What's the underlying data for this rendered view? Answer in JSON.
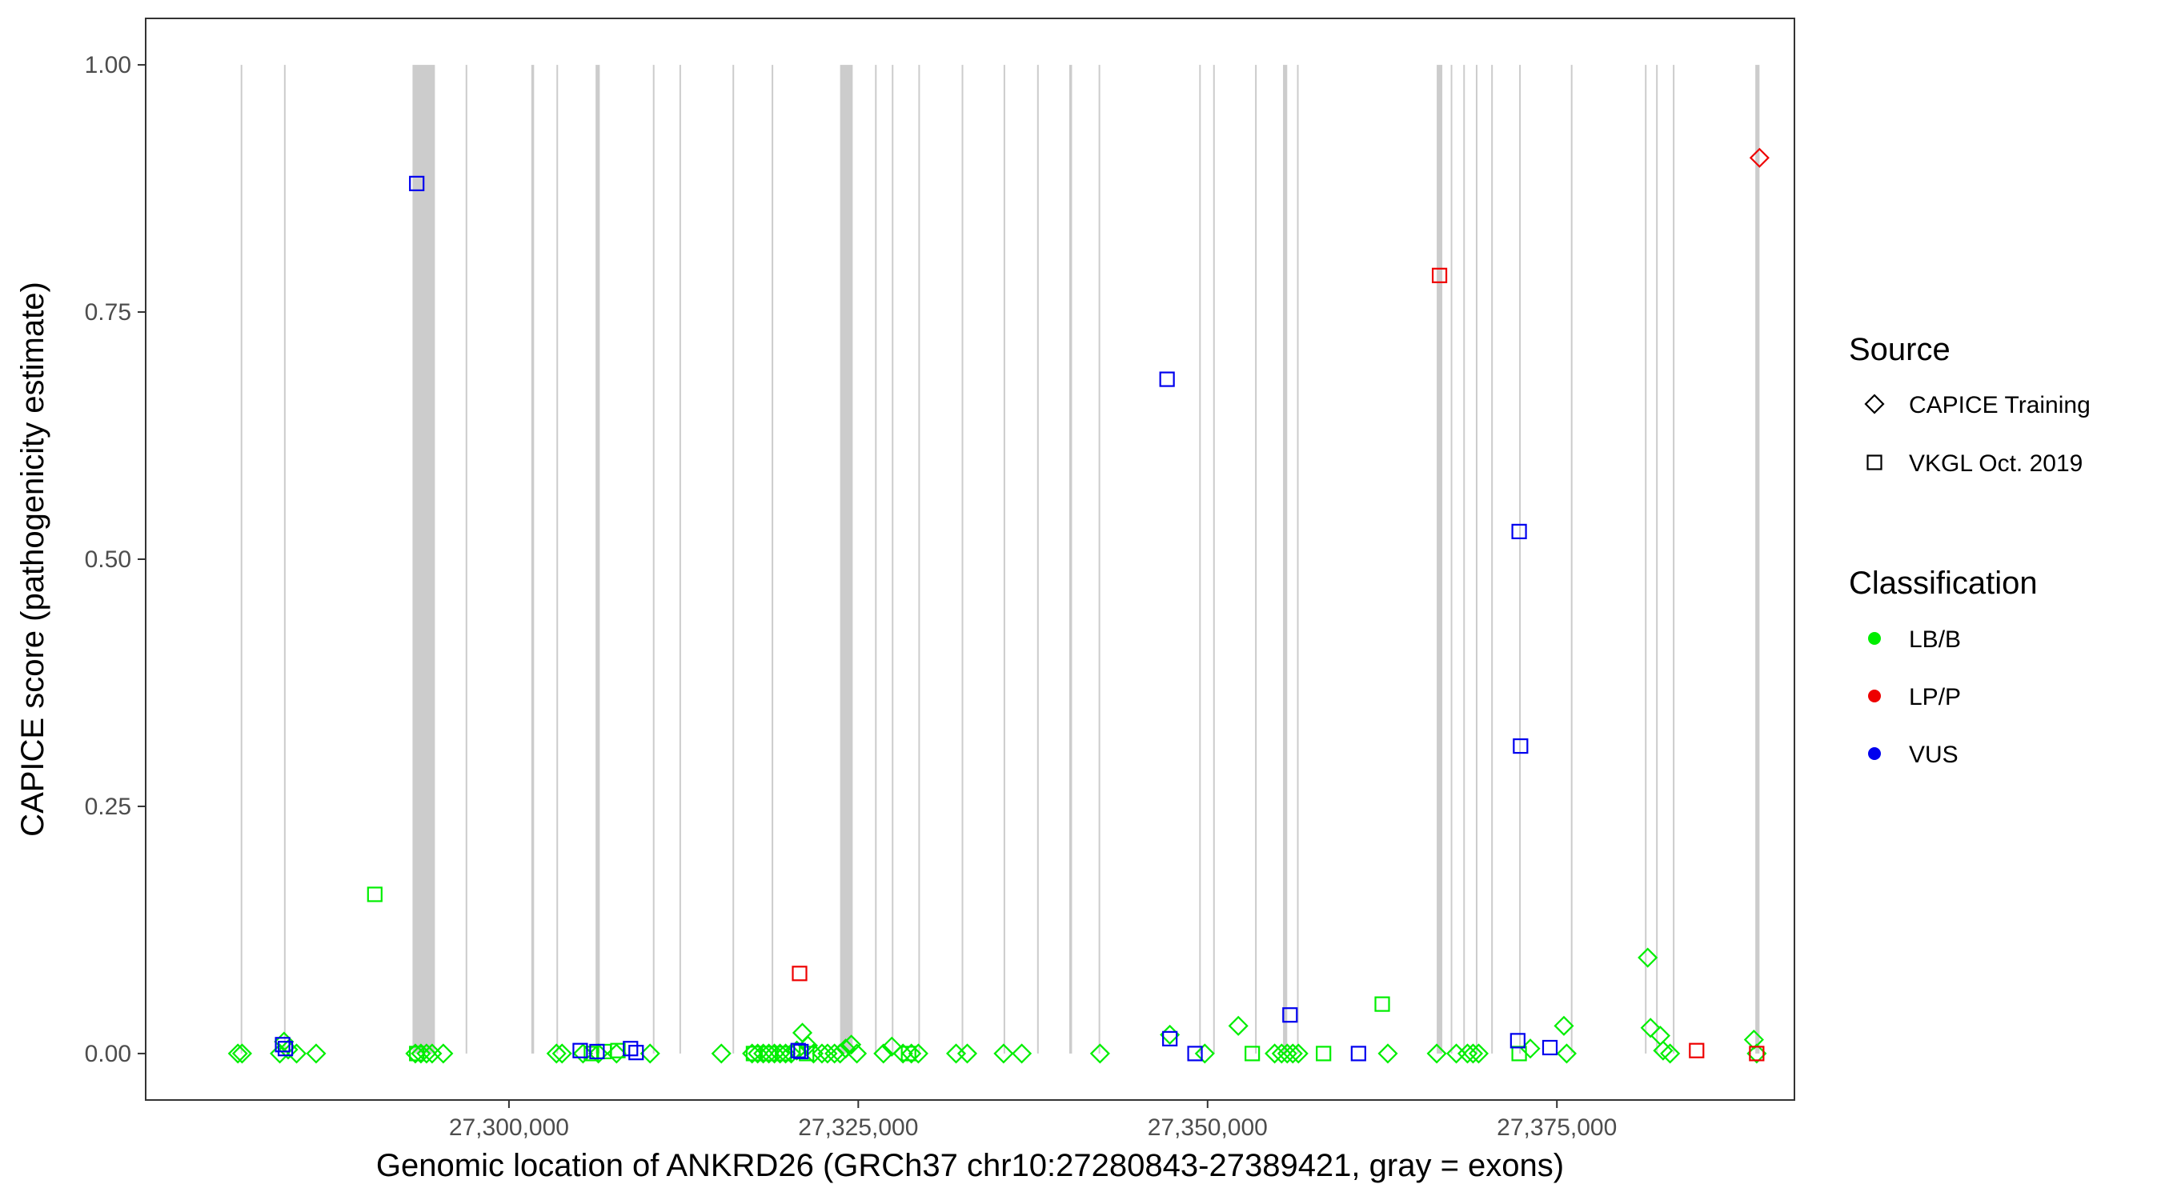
{
  "chart_data": {
    "type": "scatter",
    "xlabel": "Genomic location of ANKRD26 (GRCh37 chr10:27280843-27389421, gray = exons)",
    "ylabel": "CAPICE score (pathogenicity estimate)",
    "xlim": [
      27274000,
      27392000
    ],
    "ylim": [
      -0.047,
      1.047
    ],
    "x_ticks": [
      27300000,
      27325000,
      27350000,
      27375000
    ],
    "x_tick_labels": [
      "27,300,000",
      "27,325,000",
      "27,350,000",
      "27,375,000"
    ],
    "y_ticks": [
      0,
      0.25,
      0.5,
      0.75,
      1.0
    ],
    "y_tick_labels": [
      "0.00",
      "0.25",
      "0.50",
      "0.75",
      "1.00"
    ],
    "grid": false,
    "legend_placement": "right",
    "legends": {
      "source": {
        "title": "Source",
        "entries": [
          {
            "label": "CAPICE Training",
            "shape": "diamond"
          },
          {
            "label": "VKGL Oct. 2019",
            "shape": "square"
          }
        ]
      },
      "classification": {
        "title": "Classification",
        "entries": [
          {
            "label": "LB/B",
            "color": "#00ee00"
          },
          {
            "label": "LP/P",
            "color": "#ee0000"
          },
          {
            "label": "VUS",
            "color": "#0000ee"
          }
        ]
      }
    },
    "exons": [
      [
        27280800,
        27280900
      ],
      [
        27283900,
        27284000
      ],
      [
        27293100,
        27294700
      ],
      [
        27296900,
        27297000
      ],
      [
        27301600,
        27301800
      ],
      [
        27303400,
        27303500
      ],
      [
        27306200,
        27306500
      ],
      [
        27310300,
        27310400
      ],
      [
        27312200,
        27312300
      ],
      [
        27316000,
        27316100
      ],
      [
        27318800,
        27318900
      ],
      [
        27323700,
        27324600
      ],
      [
        27326200,
        27326300
      ],
      [
        27327400,
        27327500
      ],
      [
        27329300,
        27329400
      ],
      [
        27332400,
        27332500
      ],
      [
        27335400,
        27335500
      ],
      [
        27337800,
        27337900
      ],
      [
        27340100,
        27340300
      ],
      [
        27342200,
        27342300
      ],
      [
        27349400,
        27349500
      ],
      [
        27350400,
        27350500
      ],
      [
        27353400,
        27353500
      ],
      [
        27355400,
        27355700
      ],
      [
        27356400,
        27356500
      ],
      [
        27366400,
        27366800
      ],
      [
        27367400,
        27367500
      ],
      [
        27368300,
        27368400
      ],
      [
        27369200,
        27369300
      ],
      [
        27370300,
        27370400
      ],
      [
        27372300,
        27372400
      ],
      [
        27376000,
        27376100
      ],
      [
        27381300,
        27381400
      ],
      [
        27382100,
        27382200
      ],
      [
        27383300,
        27383400
      ],
      [
        27389200,
        27389500
      ]
    ],
    "series": [
      {
        "source": "CAPICE Training",
        "classification": "LB/B",
        "points": [
          [
            27280600,
            0
          ],
          [
            27280900,
            0
          ],
          [
            27283600,
            0
          ],
          [
            27283900,
            0.012
          ],
          [
            27284200,
            0.004
          ],
          [
            27284800,
            0
          ],
          [
            27286200,
            0
          ],
          [
            27293300,
            0
          ],
          [
            27293700,
            0
          ],
          [
            27294100,
            0
          ],
          [
            27294500,
            0
          ],
          [
            27295300,
            0
          ],
          [
            27303400,
            0
          ],
          [
            27303800,
            0
          ],
          [
            27305300,
            0
          ],
          [
            27306400,
            0
          ],
          [
            27307700,
            0
          ],
          [
            27310100,
            0
          ],
          [
            27315200,
            0
          ],
          [
            27317400,
            0
          ],
          [
            27317800,
            0
          ],
          [
            27318200,
            0
          ],
          [
            27318600,
            0
          ],
          [
            27319000,
            0
          ],
          [
            27319400,
            0
          ],
          [
            27319800,
            0
          ],
          [
            27320200,
            0
          ],
          [
            27320600,
            0.003
          ],
          [
            27321000,
            0.021
          ],
          [
            27321400,
            0.008
          ],
          [
            27321800,
            0
          ],
          [
            27322400,
            0
          ],
          [
            27322800,
            0
          ],
          [
            27323300,
            0
          ],
          [
            27323700,
            0
          ],
          [
            27324100,
            0.005
          ],
          [
            27324500,
            0.009
          ],
          [
            27324900,
            0
          ],
          [
            27326800,
            0
          ],
          [
            27327400,
            0.007
          ],
          [
            27328200,
            0
          ],
          [
            27328800,
            0
          ],
          [
            27329300,
            0
          ],
          [
            27332000,
            0
          ],
          [
            27332800,
            0
          ],
          [
            27335400,
            0
          ],
          [
            27336700,
            0
          ],
          [
            27342300,
            0
          ],
          [
            27347300,
            0.019
          ],
          [
            27349800,
            0
          ],
          [
            27352200,
            0.028
          ],
          [
            27354800,
            0
          ],
          [
            27355300,
            0
          ],
          [
            27355700,
            0
          ],
          [
            27356100,
            0
          ],
          [
            27356500,
            0
          ],
          [
            27362900,
            0
          ],
          [
            27366400,
            0
          ],
          [
            27367800,
            0
          ],
          [
            27368600,
            0
          ],
          [
            27369000,
            0
          ],
          [
            27369400,
            0
          ],
          [
            27373100,
            0.005
          ],
          [
            27375500,
            0.028
          ],
          [
            27375700,
            0
          ],
          [
            27381500,
            0.097
          ],
          [
            27381700,
            0.026
          ],
          [
            27382400,
            0.018
          ],
          [
            27382600,
            0.003
          ],
          [
            27383100,
            0
          ],
          [
            27389100,
            0.014
          ],
          [
            27389300,
            0
          ]
        ]
      },
      {
        "source": "CAPICE Training",
        "classification": "LP/P",
        "points": [
          [
            27389500,
            0.906
          ]
        ]
      },
      {
        "source": "VKGL Oct. 2019",
        "classification": "LB/B",
        "points": [
          [
            27290400,
            0.161
          ],
          [
            27293400,
            0
          ],
          [
            27305900,
            0
          ],
          [
            27306800,
            0.002
          ],
          [
            27307800,
            0.003
          ],
          [
            27317500,
            0
          ],
          [
            27318600,
            0
          ],
          [
            27319700,
            0
          ],
          [
            27321300,
            0
          ],
          [
            27328600,
            0
          ],
          [
            27353200,
            0
          ],
          [
            27358300,
            0
          ],
          [
            27362500,
            0.05
          ],
          [
            27372300,
            0
          ]
        ]
      },
      {
        "source": "VKGL Oct. 2019",
        "classification": "LP/P",
        "points": [
          [
            27320800,
            0.081
          ],
          [
            27366600,
            0.787
          ],
          [
            27385000,
            0.003
          ],
          [
            27389300,
            0
          ]
        ]
      },
      {
        "source": "VKGL Oct. 2019",
        "classification": "VUS",
        "points": [
          [
            27283800,
            0.009
          ],
          [
            27284000,
            0.005
          ],
          [
            27293400,
            0.88
          ],
          [
            27305100,
            0.003
          ],
          [
            27306300,
            0.002
          ],
          [
            27308700,
            0.005
          ],
          [
            27309100,
            0.001
          ],
          [
            27320700,
            0.003
          ],
          [
            27320900,
            0.002
          ],
          [
            27347100,
            0.682
          ],
          [
            27347300,
            0.015
          ],
          [
            27349100,
            0
          ],
          [
            27355900,
            0.039
          ],
          [
            27360800,
            0
          ],
          [
            27372300,
            0.528
          ],
          [
            27372400,
            0.311
          ],
          [
            27372200,
            0.013
          ],
          [
            27374500,
            0.006
          ]
        ]
      }
    ]
  }
}
